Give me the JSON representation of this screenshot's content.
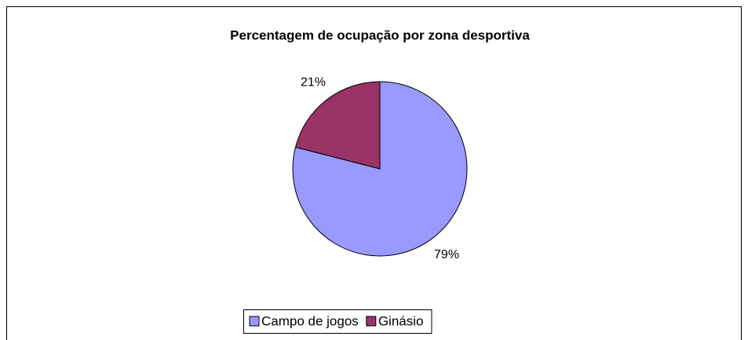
{
  "chart_data": {
    "type": "pie",
    "title": "Percentagem de ocupação por zona desportiva",
    "categories": [
      "Campo de jogos",
      "Ginásio"
    ],
    "values": [
      79,
      21
    ],
    "value_labels": [
      "79%",
      "21%"
    ],
    "colors": [
      "#9999ff",
      "#993366"
    ],
    "legend": "bottom"
  }
}
